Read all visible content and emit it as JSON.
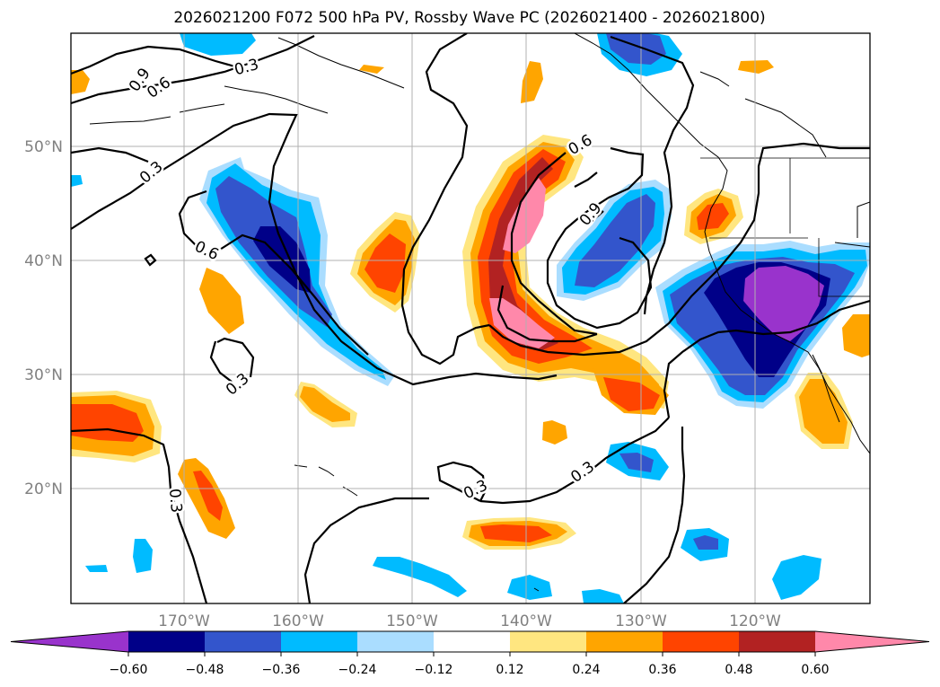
{
  "title": "2026021200 F072 500 hPa PV, Rossby Wave PC (2026021400 - 2026021800)",
  "lat_labels": [
    "50°N",
    "40°N",
    "30°N",
    "20°N"
  ],
  "lon_labels": [
    "170°W",
    "160°W",
    "150°W",
    "140°W",
    "130°W",
    "120°W"
  ],
  "contour_labels": [
    "0.9",
    "0.6",
    "0.3",
    "0.3",
    "0.6",
    "0.6",
    "0.9",
    "0.3",
    "0.3",
    "0.3",
    "0.3"
  ],
  "colorbar": {
    "tick_labels": [
      "−0.60",
      "−0.48",
      "−0.36",
      "−0.24",
      "−0.12",
      "0.12",
      "0.24",
      "0.36",
      "0.48",
      "0.60"
    ],
    "colors": [
      "#9933cc",
      "#000088",
      "#3355cc",
      "#00bbff",
      "#aaddff",
      "#ffffff",
      "#ffe680",
      "#ffa500",
      "#ff4400",
      "#b22222",
      "#ff88aa"
    ]
  },
  "chart_data": {
    "type": "map",
    "title": "2026021200 F072 500 hPa PV, Rossby Wave PC (2026021400 - 2026021800)",
    "lon_range": [
      -180,
      -110
    ],
    "lat_range": [
      10,
      60
    ],
    "colorbar_levels": [
      -0.6,
      -0.48,
      -0.36,
      -0.24,
      -0.12,
      0.12,
      0.24,
      0.36,
      0.48,
      0.6
    ],
    "contour_levels": [
      0.3,
      0.6,
      0.9
    ]
  }
}
